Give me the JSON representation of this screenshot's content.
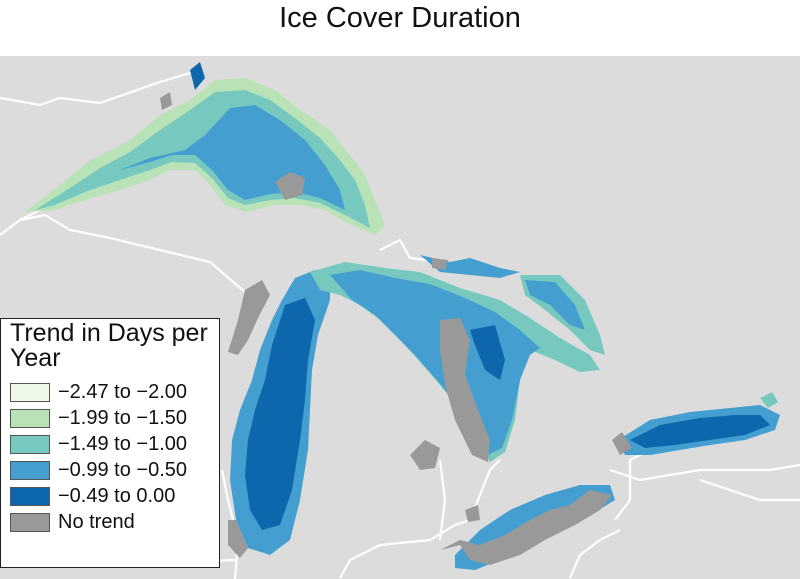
{
  "title": "Ice Cover Duration",
  "legend": {
    "title": "Trend in Days per Year",
    "items": [
      {
        "label": "−2.47 to −2.00",
        "color": "#eef8e6"
      },
      {
        "label": "−1.99 to −1.50",
        "color": "#b9e3b7"
      },
      {
        "label": "−1.49 to −1.00",
        "color": "#77c9c0"
      },
      {
        "label": "−0.99 to −0.50",
        "color": "#449fd0"
      },
      {
        "label": "−0.49 to 0.00",
        "color": "#0e66ad"
      },
      {
        "label": "No trend",
        "color": "#999999"
      }
    ]
  },
  "map": {
    "land_color": "#dcdcdc",
    "border_color": "#ffffff"
  }
}
